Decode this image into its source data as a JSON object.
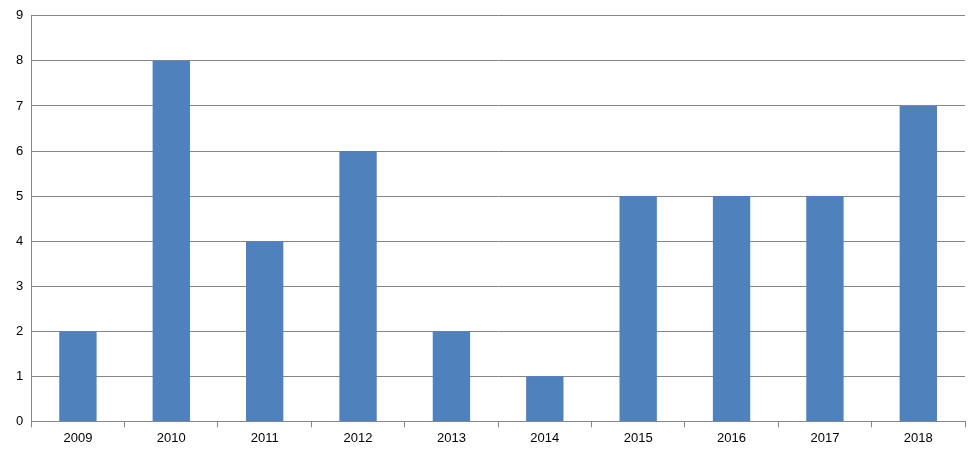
{
  "chart_data": {
    "type": "bar",
    "categories": [
      "2009",
      "2010",
      "2011",
      "2012",
      "2013",
      "2014",
      "2015",
      "2016",
      "2017",
      "2018"
    ],
    "values": [
      2,
      8,
      4,
      6,
      2,
      1,
      5,
      5,
      5,
      7
    ],
    "color": "#4f81bd",
    "ylim": [
      0,
      9
    ],
    "yticks": [
      0,
      1,
      2,
      3,
      4,
      5,
      6,
      7,
      8,
      9
    ],
    "grid": true
  }
}
